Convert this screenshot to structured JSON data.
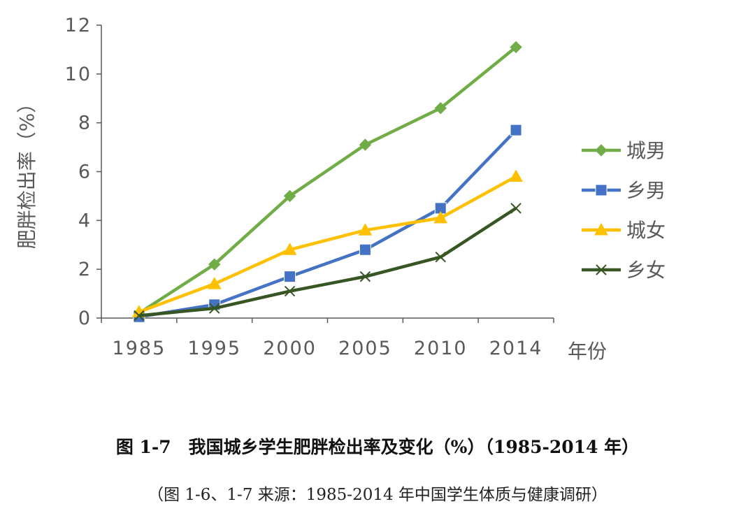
{
  "chart_data": {
    "type": "line",
    "title": "",
    "xlabel": "年份",
    "ylabel": "肥胖检出率（%）",
    "categories": [
      "1985",
      "1995",
      "2000",
      "2005",
      "2010",
      "2014"
    ],
    "ylim": [
      0,
      12
    ],
    "yticks": [
      0,
      2,
      4,
      6,
      8,
      10,
      12
    ],
    "grid": false,
    "legend_position": "right",
    "series": [
      {
        "name": "城男",
        "values": [
          0.2,
          2.2,
          5.0,
          7.1,
          8.6,
          11.1
        ],
        "color": "#70ad47",
        "marker": "diamond"
      },
      {
        "name": "乡男",
        "values": [
          0.05,
          0.55,
          1.7,
          2.8,
          4.5,
          7.7
        ],
        "color": "#4472c4",
        "marker": "square"
      },
      {
        "name": "城女",
        "values": [
          0.25,
          1.4,
          2.8,
          3.6,
          4.1,
          5.8
        ],
        "color": "#ffc000",
        "marker": "triangle"
      },
      {
        "name": "乡女",
        "values": [
          0.1,
          0.4,
          1.1,
          1.7,
          2.5,
          4.5
        ],
        "color": "#375623",
        "marker": "x"
      }
    ]
  },
  "caption": {
    "title": "图 1-7　我国城乡学生肥胖检出率及变化（%）（1985-2014 年）",
    "source": "（图 1-6、1-7 来源：1985-2014 年中国学生体质与健康调研）"
  }
}
